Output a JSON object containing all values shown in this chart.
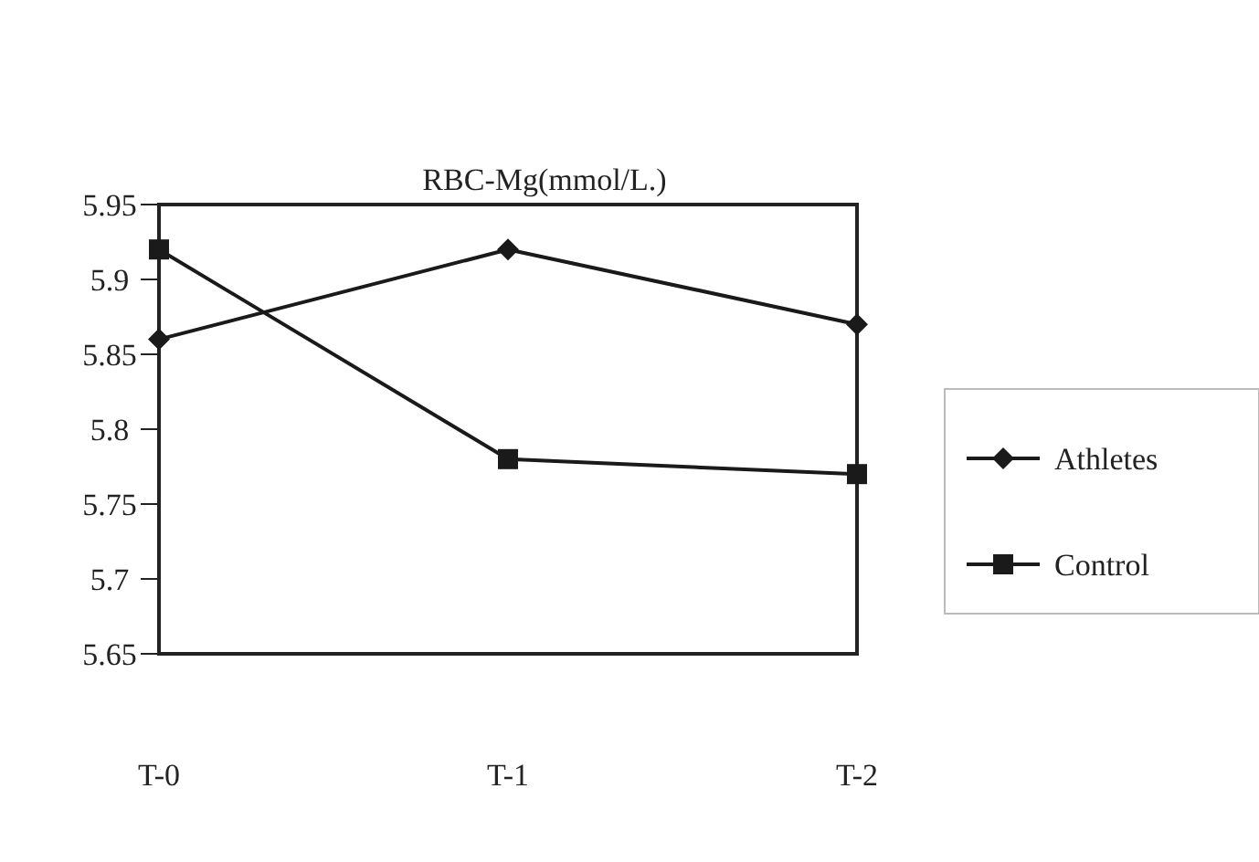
{
  "chart_data": {
    "type": "line",
    "title": "RBC-Mg(mmol/L.)",
    "categories": [
      "T-0",
      "T-1",
      "T-2"
    ],
    "series": [
      {
        "name": "Athletes",
        "color": "#1a1a1a",
        "values": [
          5.86,
          5.92,
          5.87
        ],
        "marker": "diamond"
      },
      {
        "name": "Control",
        "color": "#1a1a1a",
        "values": [
          5.92,
          5.78,
          5.77
        ],
        "marker": "square"
      }
    ],
    "ylim": [
      5.65,
      5.95
    ],
    "yticks": [
      5.65,
      5.7,
      5.75,
      5.8,
      5.85,
      5.9,
      5.95
    ],
    "legend": "right",
    "grid": false,
    "line_style": "solid"
  }
}
